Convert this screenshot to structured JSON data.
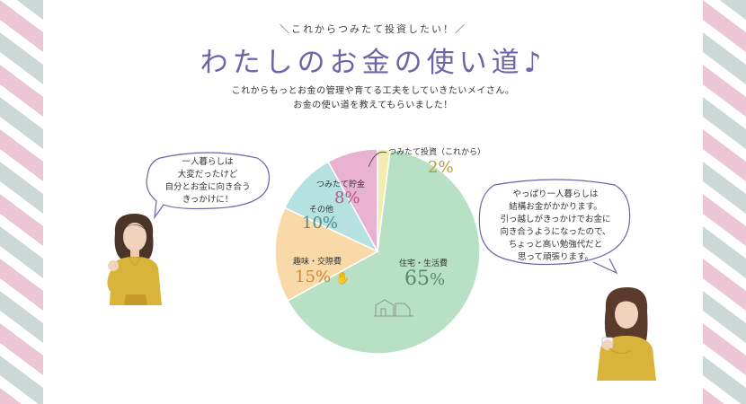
{
  "header": {
    "subtitle": "＼これからつみたて投資したい！／",
    "title": "わたしのお金の使い道♪",
    "intro_line1": "これからもっとお金の管理や育てる工夫をしていきたいメイさん。",
    "intro_line2": "お金の使い道を教えてもらいました！"
  },
  "bubbles": {
    "left": [
      "一人暮らしは",
      "大変だったけど",
      "自分とお金に向き合う",
      "きっかけに！"
    ],
    "right": [
      "やっぱり一人暮らしは",
      "結構お金がかかります。",
      "引っ越しがきっかけでお金に",
      "向き合うようになったので、",
      "ちょっと高い勉強代だと",
      "思って頑張ります。"
    ]
  },
  "chart_data": {
    "type": "pie",
    "title": "わたしのお金の使い道",
    "unit": "%",
    "slices": [
      {
        "name": "つみたて投資（これから）",
        "value": 2,
        "color": "#f3ecb0",
        "pct_color": "#b59a3a"
      },
      {
        "name": "住宅・生活費",
        "value": 65,
        "color": "#b8e0c4",
        "pct_color": "#5a8a6a"
      },
      {
        "name": "趣味・交際費",
        "value": 15,
        "color": "#f9d9a8",
        "pct_color": "#c98a3a"
      },
      {
        "name": "その他",
        "value": 10,
        "color": "#b5e2e0",
        "pct_color": "#4a8a8a"
      },
      {
        "name": "つみたて貯金",
        "value": 8,
        "color": "#e8b2d0",
        "pct_color": "#b05a8a"
      }
    ]
  },
  "colors": {
    "title": "#6b66a8",
    "stripe_pink": "#ecc6d4",
    "stripe_gray": "#ccd8d6",
    "bubble_stroke": "#6b66a8"
  }
}
